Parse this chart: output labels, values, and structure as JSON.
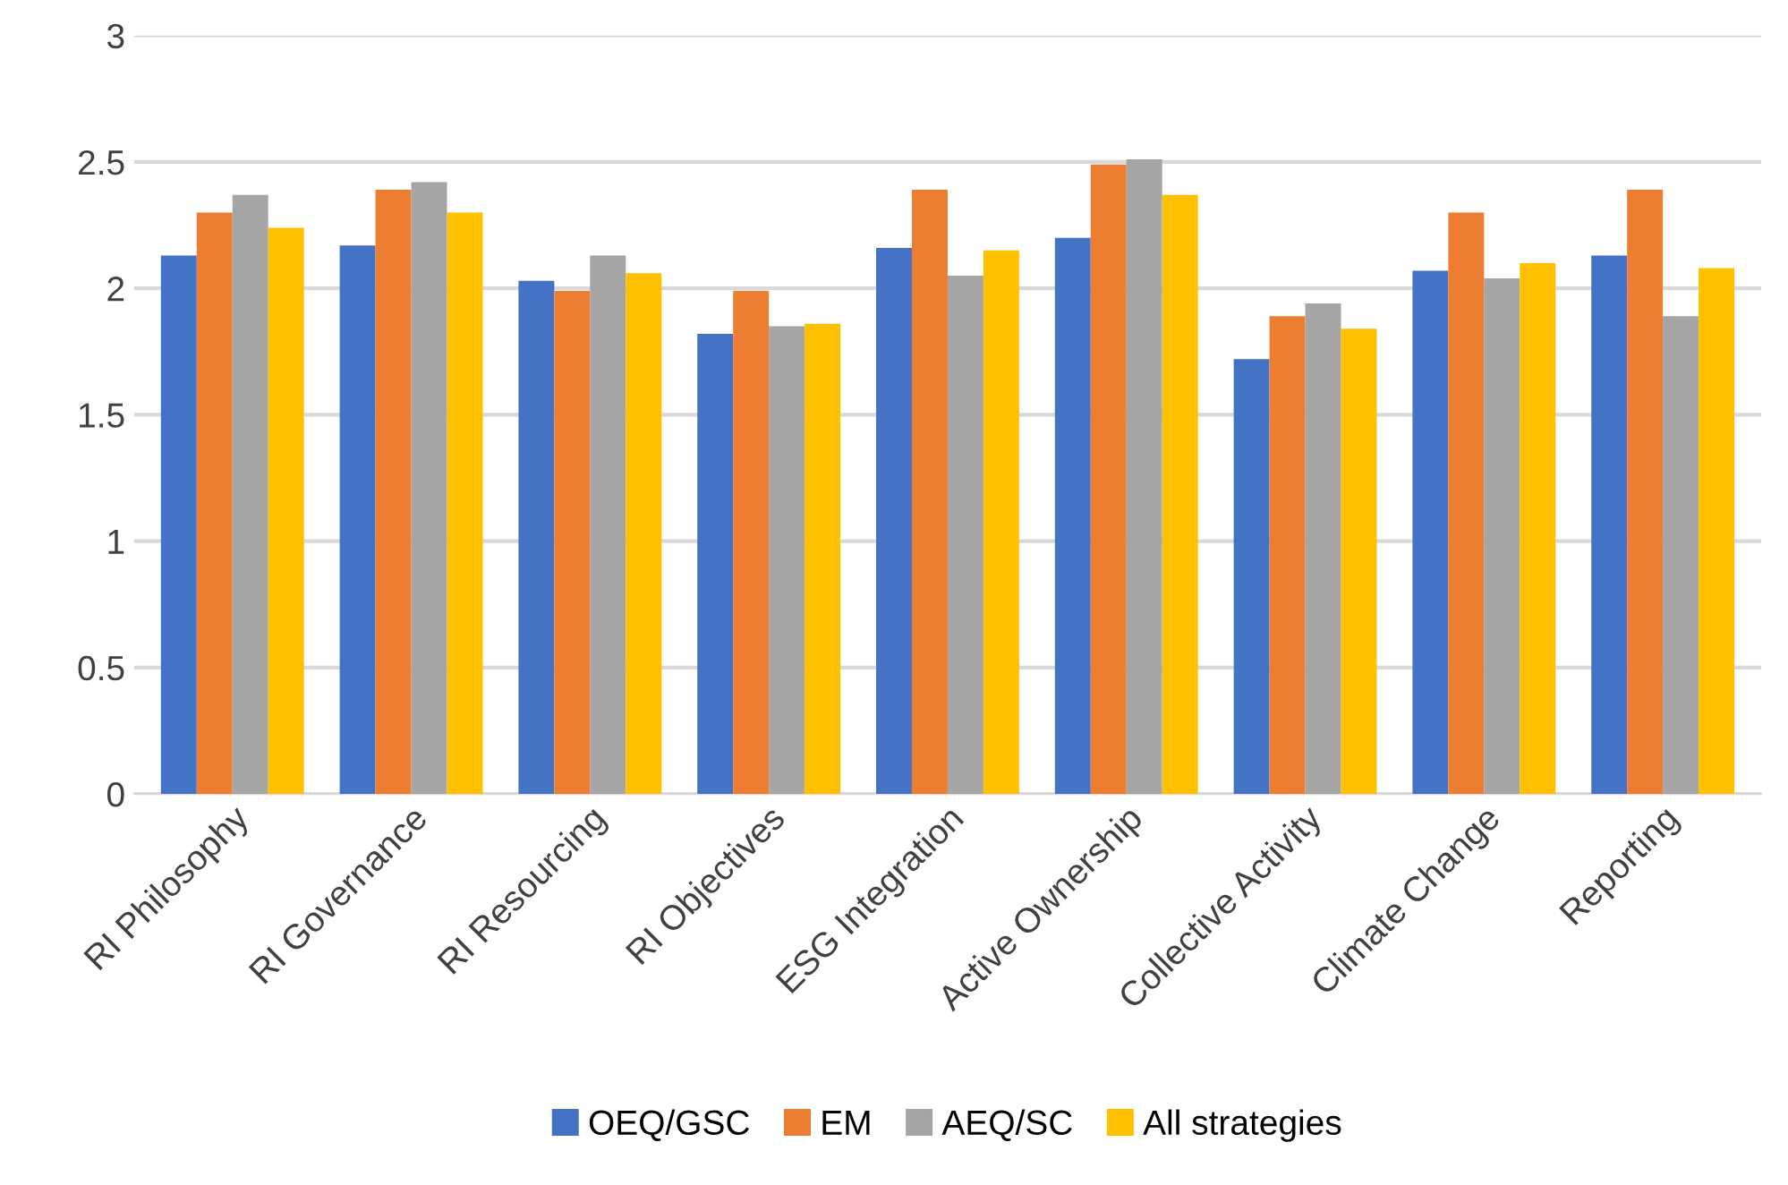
{
  "chart_data": {
    "type": "bar",
    "categories": [
      "RI Philosophy",
      "RI Governance",
      "RI Resourcing",
      "RI Objectives",
      "ESG Integration",
      "Active Ownership",
      "Collective Activity",
      "Climate Change",
      "Reporting"
    ],
    "series": [
      {
        "name": "OEQ/GSC",
        "color": "#4472c4",
        "values": [
          2.13,
          2.17,
          2.03,
          1.82,
          2.16,
          2.2,
          1.72,
          2.07,
          2.13
        ]
      },
      {
        "name": "EM",
        "color": "#ed7d31",
        "values": [
          2.3,
          2.39,
          1.99,
          1.99,
          2.39,
          2.49,
          1.89,
          2.3,
          2.39
        ]
      },
      {
        "name": "AEQ/SC",
        "color": "#a5a5a5",
        "values": [
          2.37,
          2.42,
          2.13,
          1.85,
          2.05,
          2.51,
          1.94,
          2.04,
          1.89
        ]
      },
      {
        "name": "All strategies",
        "color": "#ffc000",
        "values": [
          2.24,
          2.3,
          2.06,
          1.86,
          2.15,
          2.37,
          1.84,
          2.1,
          2.08
        ]
      }
    ],
    "ylim": [
      0,
      3
    ],
    "yticks": [
      0,
      0.5,
      1,
      1.5,
      2,
      2.5,
      3
    ],
    "grid": "y",
    "legend": "bottom"
  }
}
